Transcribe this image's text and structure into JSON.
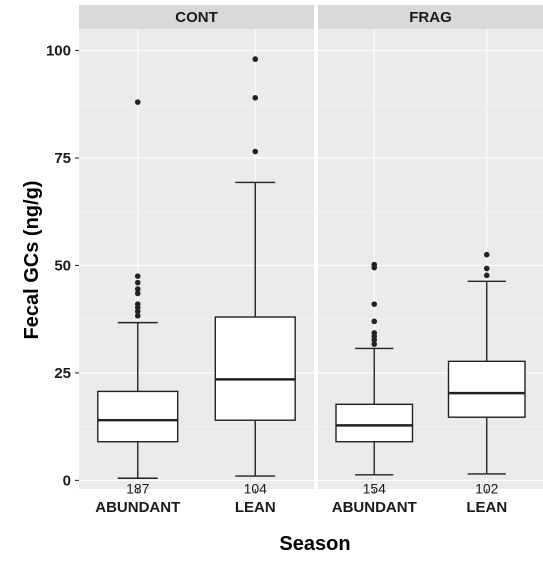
{
  "chart_data": {
    "type": "boxplot",
    "xlabel": "Season",
    "ylabel": "Fecal GCs (ng/g)",
    "ylim": [
      -2,
      105
    ],
    "yticks": [
      0,
      25,
      50,
      75,
      100
    ],
    "grid": true,
    "panels": [
      {
        "strip": "CONT",
        "categories": [
          "ABUNDANT",
          "LEAN"
        ],
        "boxes": [
          {
            "category": "ABUNDANT",
            "whisker_low": 0.5,
            "q1": 9,
            "median": 14,
            "q3": 20.7,
            "whisker_high": 36.7,
            "outliers": [
              38.3,
              39.3,
              40.2,
              41,
              43.5,
              44.5,
              46,
              47.5,
              88
            ],
            "n": "187"
          },
          {
            "category": "LEAN",
            "whisker_low": 1,
            "q1": 14,
            "median": 23.5,
            "q3": 38,
            "whisker_high": 69.3,
            "outliers": [
              76.5,
              89,
              98
            ],
            "n": "104"
          }
        ]
      },
      {
        "strip": "FRAG",
        "categories": [
          "ABUNDANT",
          "LEAN"
        ],
        "boxes": [
          {
            "category": "ABUNDANT",
            "whisker_low": 1.3,
            "q1": 9,
            "median": 12.8,
            "q3": 17.7,
            "whisker_high": 30.7,
            "outliers": [
              31.7,
              32.7,
              33.5,
              34.3,
              37,
              41,
              49.5,
              50.2
            ],
            "n": "154"
          },
          {
            "category": "LEAN",
            "whisker_low": 1.5,
            "q1": 14.7,
            "median": 20.3,
            "q3": 27.7,
            "whisker_high": 46.3,
            "outliers": [
              47.7,
              49.3,
              52.5
            ],
            "n": "102"
          }
        ]
      }
    ]
  }
}
